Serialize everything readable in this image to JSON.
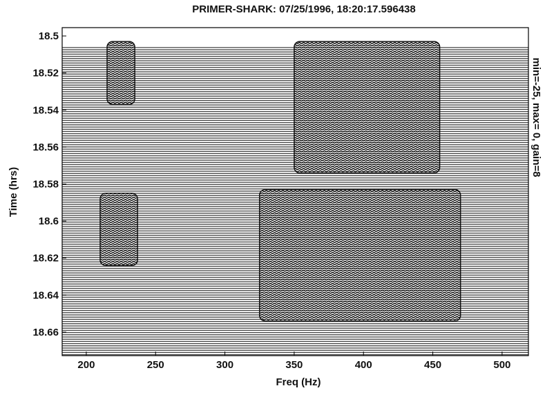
{
  "chart_data": {
    "type": "waterfall",
    "title": "PRIMER-SHARK: 07/25/1996, 18:20:17.596438",
    "xlabel": "Freq (Hz)",
    "ylabel": "Time (hrs)",
    "annotation": "min=-25, max=  0, gain=8",
    "xlim": [
      182.6,
      519
    ],
    "ylim": [
      18.6727,
      18.4955
    ],
    "xticks": [
      200,
      250,
      300,
      350,
      400,
      450,
      500
    ],
    "yticks": [
      18.5,
      18.52,
      18.54,
      18.56,
      18.58,
      18.6,
      18.62,
      18.64,
      18.66
    ],
    "data_start": 18.506,
    "regions": [
      {
        "freq": [
          215,
          235
        ],
        "time": [
          18.503,
          18.537
        ]
      },
      {
        "freq": [
          350,
          455
        ],
        "time": [
          18.503,
          18.574
        ]
      },
      {
        "freq": [
          210,
          237
        ],
        "time": [
          18.585,
          18.624
        ]
      },
      {
        "freq": [
          325,
          470
        ],
        "time": [
          18.583,
          18.654
        ]
      }
    ],
    "color": "#111111"
  }
}
